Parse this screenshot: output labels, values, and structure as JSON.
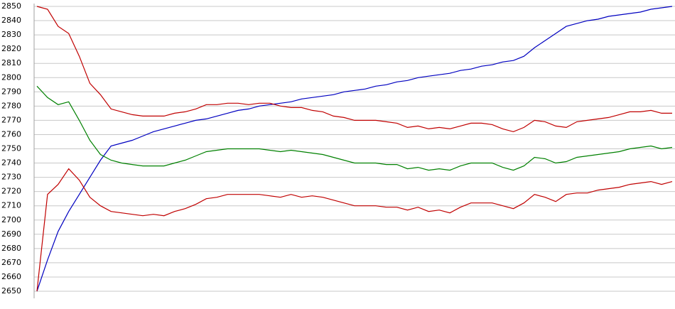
{
  "chart_data": {
    "type": "line",
    "ylim": [
      2650,
      2850
    ],
    "yticks": [
      2650,
      2660,
      2670,
      2680,
      2690,
      2700,
      2710,
      2720,
      2730,
      2740,
      2750,
      2760,
      2770,
      2780,
      2790,
      2800,
      2810,
      2820,
      2830,
      2840,
      2850
    ],
    "grid": true,
    "series": [
      {
        "color": "#0000c0",
        "values": [
          2650,
          2672,
          2692,
          2706,
          2718,
          2730,
          2742,
          2752,
          2754,
          2756,
          2759,
          2762,
          2764,
          2766,
          2768,
          2770,
          2771,
          2773,
          2775,
          2777,
          2778,
          2780,
          2781,
          2782,
          2783,
          2785,
          2786,
          2787,
          2788,
          2790,
          2791,
          2792,
          2794,
          2795,
          2797,
          2798,
          2800,
          2801,
          2802,
          2803,
          2805,
          2806,
          2808,
          2809,
          2811,
          2812,
          2815,
          2821,
          2826,
          2831,
          2836,
          2838,
          2840,
          2841,
          2843,
          2844,
          2845,
          2846,
          2848,
          2849,
          2850
        ]
      },
      {
        "color": "#c00000",
        "values": [
          2850,
          2848,
          2836,
          2831,
          2815,
          2796,
          2788,
          2778,
          2776,
          2774,
          2773,
          2773,
          2773,
          2775,
          2776,
          2778,
          2781,
          2781,
          2782,
          2782,
          2781,
          2782,
          2782,
          2780,
          2779,
          2779,
          2777,
          2776,
          2773,
          2772,
          2770,
          2770,
          2770,
          2769,
          2768,
          2765,
          2766,
          2764,
          2765,
          2764,
          2766,
          2768,
          2768,
          2767,
          2764,
          2762,
          2765,
          2770,
          2769,
          2766,
          2765,
          2769,
          2770,
          2771,
          2772,
          2774,
          2776,
          2776,
          2777,
          2775,
          2775
        ]
      },
      {
        "color": "#008000",
        "values": [
          2794,
          2786,
          2781,
          2783,
          2770,
          2756,
          2746,
          2742,
          2740,
          2739,
          2738,
          2738,
          2738,
          2740,
          2742,
          2745,
          2748,
          2749,
          2750,
          2750,
          2750,
          2750,
          2749,
          2748,
          2749,
          2748,
          2747,
          2746,
          2744,
          2742,
          2740,
          2740,
          2740,
          2739,
          2739,
          2736,
          2737,
          2735,
          2736,
          2735,
          2738,
          2740,
          2740,
          2740,
          2737,
          2735,
          2738,
          2744,
          2743,
          2740,
          2741,
          2744,
          2745,
          2746,
          2747,
          2748,
          2750,
          2751,
          2752,
          2750,
          2751
        ]
      },
      {
        "color": "#c00000",
        "values": [
          2650,
          2718,
          2725,
          2736,
          2728,
          2716,
          2710,
          2706,
          2705,
          2704,
          2703,
          2704,
          2703,
          2706,
          2708,
          2711,
          2715,
          2716,
          2718,
          2718,
          2718,
          2718,
          2717,
          2716,
          2718,
          2716,
          2717,
          2716,
          2714,
          2712,
          2710,
          2710,
          2710,
          2709,
          2709,
          2707,
          2709,
          2706,
          2707,
          2705,
          2709,
          2712,
          2712,
          2712,
          2710,
          2708,
          2712,
          2718,
          2716,
          2713,
          2718,
          2719,
          2719,
          2721,
          2722,
          2723,
          2725,
          2726,
          2727,
          2725,
          2727
        ]
      }
    ]
  }
}
